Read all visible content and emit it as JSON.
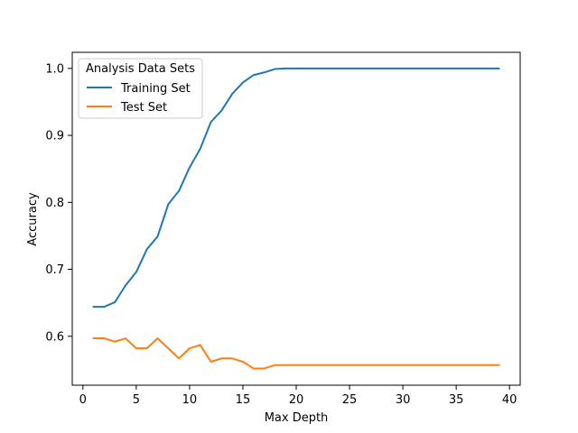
{
  "chart_data": {
    "type": "line",
    "title": "",
    "xlabel": "Max Depth",
    "ylabel": "Accuracy",
    "xlim": [
      -1,
      41
    ],
    "ylim": [
      0.527,
      1.024
    ],
    "xticks": [
      0,
      5,
      10,
      15,
      20,
      25,
      30,
      35,
      40
    ],
    "yticks": [
      0.6,
      0.7,
      0.8,
      0.9,
      1.0
    ],
    "ytick_labels": [
      "0.6",
      "0.7",
      "0.8",
      "0.9",
      "1.0"
    ],
    "grid": false,
    "legend": {
      "title": "Analysis Data Sets",
      "placement": "top-left"
    },
    "x": [
      1,
      2,
      3,
      4,
      5,
      6,
      7,
      8,
      9,
      10,
      11,
      12,
      13,
      14,
      15,
      16,
      17,
      18,
      19,
      20,
      21,
      22,
      23,
      24,
      25,
      26,
      27,
      28,
      29,
      30,
      31,
      32,
      33,
      34,
      35,
      36,
      37,
      38,
      39
    ],
    "series": [
      {
        "name": "Training Set",
        "color": "#1f77b4",
        "values": [
          0.644,
          0.644,
          0.651,
          0.676,
          0.696,
          0.73,
          0.749,
          0.797,
          0.817,
          0.852,
          0.88,
          0.92,
          0.937,
          0.962,
          0.979,
          0.99,
          0.994,
          0.999,
          1.0,
          1.0,
          1.0,
          1.0,
          1.0,
          1.0,
          1.0,
          1.0,
          1.0,
          1.0,
          1.0,
          1.0,
          1.0,
          1.0,
          1.0,
          1.0,
          1.0,
          1.0,
          1.0,
          1.0,
          1.0
        ]
      },
      {
        "name": "Test Set",
        "color": "#ff7f0e",
        "values": [
          0.597,
          0.597,
          0.592,
          0.597,
          0.582,
          0.582,
          0.597,
          0.582,
          0.567,
          0.582,
          0.587,
          0.562,
          0.567,
          0.567,
          0.562,
          0.552,
          0.552,
          0.557,
          0.557,
          0.557,
          0.557,
          0.557,
          0.557,
          0.557,
          0.557,
          0.557,
          0.557,
          0.557,
          0.557,
          0.557,
          0.557,
          0.557,
          0.557,
          0.557,
          0.557,
          0.557,
          0.557,
          0.557,
          0.557
        ]
      }
    ]
  }
}
